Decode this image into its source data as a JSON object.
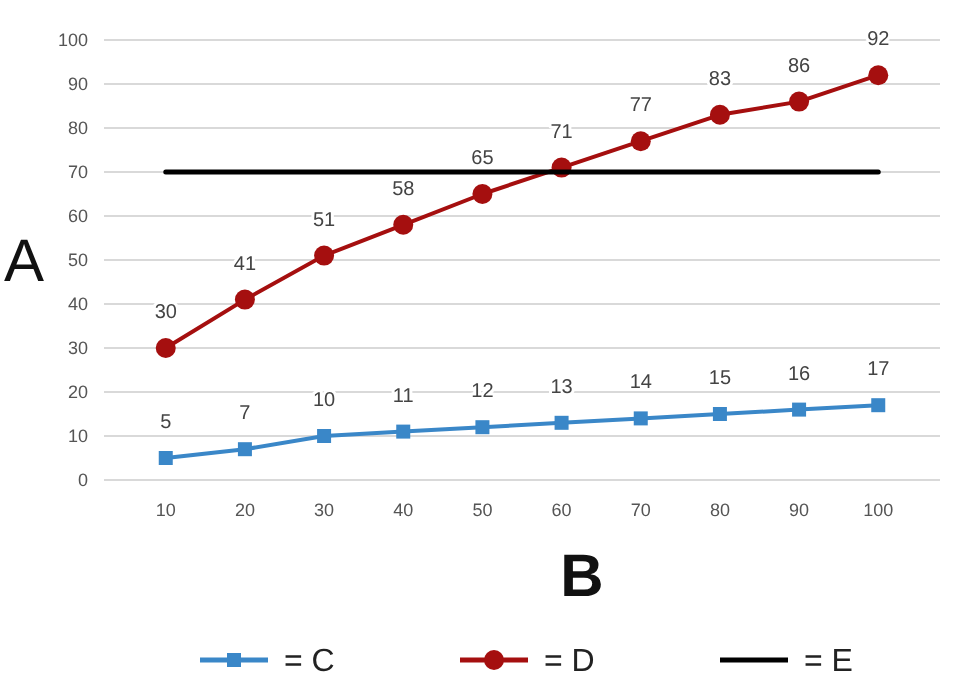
{
  "chart_data": {
    "type": "line",
    "xlabel": "B",
    "ylabel": "A",
    "categories": [
      "10",
      "20",
      "30",
      "40",
      "50",
      "60",
      "70",
      "80",
      "90",
      "100"
    ],
    "series": [
      {
        "name": "= C",
        "color": "#3a87c8",
        "marker": "square",
        "values": [
          5,
          7,
          10,
          11,
          12,
          13,
          14,
          15,
          16,
          17
        ],
        "value_labels": [
          "5",
          "7",
          "10",
          "11",
          "12",
          "13",
          "14",
          "15",
          "16",
          "17"
        ]
      },
      {
        "name": "= D",
        "color": "#a50f0f",
        "marker": "circle",
        "values": [
          30,
          41,
          51,
          58,
          65,
          71,
          77,
          83,
          86,
          92
        ],
        "value_labels": [
          "30",
          "41",
          "51",
          "58",
          "65",
          "71",
          "77",
          "83",
          "86",
          "92"
        ]
      },
      {
        "name": "= E",
        "color": "#000000",
        "marker": "none",
        "values": [
          70,
          70,
          70,
          70,
          70,
          70,
          70,
          70,
          70,
          70
        ]
      }
    ],
    "ylim": [
      0,
      100
    ],
    "yticks": [
      0,
      10,
      20,
      30,
      40,
      50,
      60,
      70,
      80,
      90,
      100
    ],
    "grid": "y",
    "legend": "bottom"
  }
}
